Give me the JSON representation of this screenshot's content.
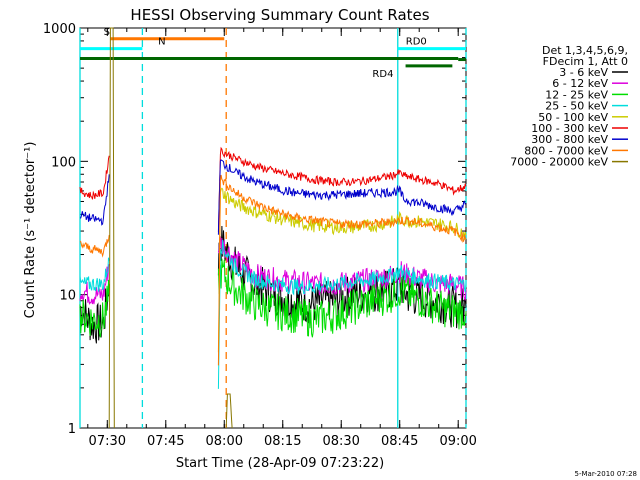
{
  "chart_data": {
    "type": "line",
    "title": "HESSI Observing Summary Count Rates",
    "xlabel": "Start Time (28-Apr-09 07:23:22)",
    "ylabel": "Count Rate (s⁻¹ detector⁻¹)",
    "yscale": "log",
    "ylim": [
      1,
      1000
    ],
    "x_range_minutes": [
      "07:23:22",
      "09:00:30"
    ],
    "y_ticks": [
      {
        "value": 1,
        "label": "1"
      },
      {
        "value": 10,
        "label": "10"
      },
      {
        "value": 100,
        "label": "100"
      },
      {
        "value": 1000,
        "label": "1000"
      }
    ],
    "x_ticks": [
      {
        "value": 7.0,
        "label": "07:30"
      },
      {
        "value": 22.0,
        "label": "07:45"
      },
      {
        "value": 37.0,
        "label": "08:00"
      },
      {
        "value": 52.0,
        "label": "08:15"
      },
      {
        "value": 67.0,
        "label": "08:30"
      },
      {
        "value": 82.0,
        "label": "08:45"
      },
      {
        "value": 97.0,
        "label": "09:00"
      }
    ],
    "legend_header": [
      "Det 1,3,4,5,6,9,",
      "FDecim 1, Att 0"
    ],
    "legend_position": "right",
    "series": [
      {
        "name": "3 - 6 keV",
        "color": "#000000",
        "segments": [
          [
            [
              0,
              8
            ],
            [
              3,
              6
            ],
            [
              6,
              6
            ],
            [
              7.5,
              12
            ]
          ],
          [
            [
              35.5,
              18
            ],
            [
              36,
              25
            ],
            [
              40,
              16
            ],
            [
              45,
              12
            ],
            [
              50,
              10
            ],
            [
              55,
              9
            ],
            [
              60,
              8.5
            ],
            [
              65,
              9
            ],
            [
              70,
              10
            ],
            [
              75,
              10.5
            ],
            [
              80,
              11
            ],
            [
              82,
              12
            ],
            [
              84,
              10
            ],
            [
              88,
              9.5
            ],
            [
              92,
              9
            ],
            [
              96,
              8
            ],
            [
              99,
              8
            ]
          ]
        ]
      },
      {
        "name": "6 - 12 keV",
        "color": "#dd00dd",
        "segments": [
          [
            [
              0,
              11
            ],
            [
              3,
              10
            ],
            [
              6,
              10
            ],
            [
              7.5,
              17
            ]
          ],
          [
            [
              35.5,
              22
            ],
            [
              36,
              25
            ],
            [
              40,
              18
            ],
            [
              45,
              14
            ],
            [
              50,
              13
            ],
            [
              55,
              12.5
            ],
            [
              60,
              12
            ],
            [
              65,
              12
            ],
            [
              70,
              12.5
            ],
            [
              75,
              13
            ],
            [
              80,
              14
            ],
            [
              82,
              15
            ],
            [
              84,
              14
            ],
            [
              88,
              13
            ],
            [
              92,
              12
            ],
            [
              96,
              12
            ],
            [
              99,
              11
            ]
          ]
        ]
      },
      {
        "name": "12 - 25 keV",
        "color": "#00dd00",
        "segments": [
          [
            [
              0,
              7
            ],
            [
              3,
              6.5
            ],
            [
              6,
              6.5
            ],
            [
              7.5,
              10
            ]
          ],
          [
            [
              35.5,
              12
            ],
            [
              36,
              15
            ],
            [
              40,
              11
            ],
            [
              45,
              8.5
            ],
            [
              50,
              7.5
            ],
            [
              55,
              7
            ],
            [
              60,
              6.5
            ],
            [
              65,
              7
            ],
            [
              70,
              8
            ],
            [
              75,
              9
            ],
            [
              80,
              10
            ],
            [
              82,
              11
            ],
            [
              84,
              10
            ],
            [
              88,
              9
            ],
            [
              92,
              8
            ],
            [
              96,
              7.5
            ],
            [
              99,
              7.5
            ]
          ]
        ]
      },
      {
        "name": "25 - 50 keV",
        "color": "#00dddd",
        "segments": [
          [
            [
              0,
              12
            ],
            [
              3,
              12
            ],
            [
              6,
              12
            ],
            [
              7.5,
              18
            ]
          ],
          [
            [
              35.5,
              2
            ],
            [
              36,
              24
            ],
            [
              40,
              16
            ],
            [
              45,
              13
            ],
            [
              50,
              12
            ],
            [
              55,
              11.5
            ],
            [
              60,
              11.5
            ],
            [
              65,
              12
            ],
            [
              70,
              12.5
            ],
            [
              75,
              13
            ],
            [
              80,
              14
            ],
            [
              82,
              15
            ],
            [
              83,
              14.5
            ],
            [
              88,
              13
            ],
            [
              92,
              12.5
            ],
            [
              96,
              12
            ],
            [
              99,
              12
            ]
          ]
        ]
      },
      {
        "name": "50 - 100 keV",
        "color": "#cccc00",
        "segments": [
          [
            [
              35.5,
              4
            ],
            [
              36,
              60
            ],
            [
              40,
              48
            ],
            [
              45,
              42
            ],
            [
              50,
              38
            ],
            [
              55,
              35
            ],
            [
              60,
              33
            ],
            [
              65,
              32
            ],
            [
              70,
              32
            ],
            [
              75,
              33
            ],
            [
              80,
              35
            ],
            [
              82,
              37
            ],
            [
              84,
              36
            ],
            [
              88,
              35
            ],
            [
              92,
              34
            ],
            [
              96,
              32
            ],
            [
              99,
              28
            ]
          ]
        ]
      },
      {
        "name": "100 - 300 keV",
        "color": "#ee0000",
        "segments": [
          [
            [
              0,
              60
            ],
            [
              3,
              55
            ],
            [
              6,
              58
            ],
            [
              7.5,
              110
            ]
          ],
          [
            [
              35.5,
              30
            ],
            [
              36,
              120
            ],
            [
              40,
              105
            ],
            [
              45,
              92
            ],
            [
              50,
              84
            ],
            [
              55,
              78
            ],
            [
              60,
              73
            ],
            [
              65,
              70
            ],
            [
              70,
              70
            ],
            [
              75,
              73
            ],
            [
              80,
              78
            ],
            [
              82,
              82
            ],
            [
              83,
              78
            ],
            [
              88,
              72
            ],
            [
              92,
              68
            ],
            [
              96,
              60
            ],
            [
              99,
              65
            ]
          ]
        ]
      },
      {
        "name": "300 - 800 keV",
        "color": "#0000cc",
        "segments": [
          [
            [
              0,
              40
            ],
            [
              3,
              37
            ],
            [
              6,
              36
            ],
            [
              7.5,
              80
            ]
          ],
          [
            [
              35.5,
              30
            ],
            [
              36,
              100
            ],
            [
              40,
              82
            ],
            [
              45,
              70
            ],
            [
              50,
              63
            ],
            [
              55,
              58
            ],
            [
              60,
              56
            ],
            [
              65,
              56
            ],
            [
              70,
              57
            ],
            [
              75,
              58
            ],
            [
              80,
              59
            ],
            [
              82,
              60
            ],
            [
              83,
              52
            ],
            [
              88,
              48
            ],
            [
              92,
              45
            ],
            [
              96,
              42
            ],
            [
              99,
              48
            ]
          ]
        ]
      },
      {
        "name": "800 - 7000 keV",
        "color": "#ff7700",
        "segments": [
          [
            [
              0,
              24
            ],
            [
              3,
              22
            ],
            [
              6,
              21
            ],
            [
              7.5,
              28
            ]
          ],
          [
            [
              35.5,
              3
            ],
            [
              36,
              75
            ],
            [
              40,
              58
            ],
            [
              45,
              48
            ],
            [
              50,
              42
            ],
            [
              55,
              38
            ],
            [
              60,
              36
            ],
            [
              65,
              34
            ],
            [
              70,
              34
            ],
            [
              75,
              34
            ],
            [
              80,
              35
            ],
            [
              82,
              36
            ],
            [
              84,
              36
            ],
            [
              88,
              34
            ],
            [
              92,
              32
            ],
            [
              96,
              30
            ],
            [
              99,
              26
            ]
          ]
        ]
      },
      {
        "name": "7000 - 20000 keV",
        "color": "#887700",
        "segments": [
          [
            [
              7.5,
              1
            ],
            [
              7.8,
              1000
            ],
            [
              8.5,
              1000
            ],
            [
              8.8,
              1
            ]
          ],
          [
            [
              37.5,
              1
            ],
            [
              37.8,
              1.8
            ],
            [
              38.5,
              1.8
            ],
            [
              39,
              1
            ]
          ]
        ]
      }
    ],
    "annotations": [
      {
        "label": "S",
        "color": "#ff7700",
        "x_start": 7.8,
        "x_end": 37.0,
        "level": 830,
        "label_x": 4.0
      },
      {
        "label": "N",
        "color": "#00ffff",
        "x_start": 0.0,
        "x_end": 16.0,
        "level": 700,
        "label_x": 18.0
      },
      {
        "label": "",
        "color": "#006600",
        "x_start": 0.0,
        "x_end": 97.0,
        "level": 590,
        "label_x": 0
      },
      {
        "label": "RD0",
        "color": "#00ffff",
        "x_start": 81.5,
        "x_end": 99.0,
        "level": 700,
        "label_x": 81.5
      },
      {
        "label": "RD4",
        "color": "#006600",
        "x_start": 83.5,
        "x_end": 95.5,
        "level": 520,
        "label_x": 75.0
      },
      {
        "label": "",
        "color": "#006600",
        "x_start": 97.0,
        "x_end": 99.0,
        "level": 580,
        "label_x": 0
      }
    ],
    "vertical_lines": [
      {
        "x": 0.0,
        "color": "#00dddd",
        "style": "solid"
      },
      {
        "x": 16.0,
        "color": "#00dddd",
        "style": "dashed"
      },
      {
        "x": 37.5,
        "color": "#ff7700",
        "style": "dashed"
      },
      {
        "x": 81.5,
        "color": "#00dddd",
        "style": "solid"
      },
      {
        "x": 99.0,
        "color": "#00dddd",
        "style": "dashed"
      }
    ]
  },
  "timestamp": "5-Mar-2010 07:28"
}
